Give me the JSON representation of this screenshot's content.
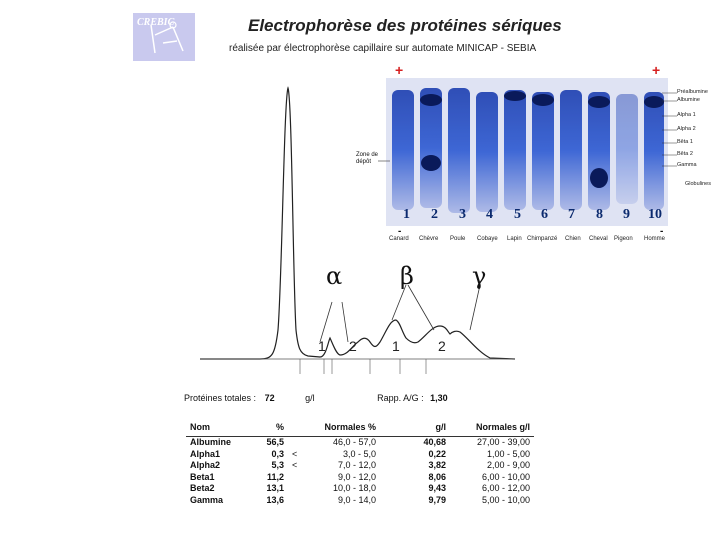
{
  "header": {
    "logo_text": "CREBIC",
    "title": "Electrophorèse des protéines sériques",
    "subtitle": "réalisée par électrophorèse capillaire sur automate MINICAP - SEBIA"
  },
  "gel": {
    "anode_left": "+",
    "anode_right": "+",
    "cathode_left": "-",
    "cathode_right": "-",
    "deposit_zone_line1": "Zone de",
    "deposit_zone_line2": "dépôt",
    "lane_numbers": [
      "1",
      "2",
      "3",
      "4",
      "5",
      "6",
      "7",
      "8",
      "9",
      "10"
    ],
    "lane_names": [
      "Canard",
      "Chèvre",
      "Poule",
      "Cobaye",
      "Lapin",
      "Chimpanzé",
      "Chien",
      "Cheval",
      "Pigeon",
      "Homme"
    ],
    "right_labels": [
      "Préalbumine",
      "Albumine",
      "Alpha 1",
      "Alpha 2",
      "Bêta 1",
      "Bêta 2",
      "Gamma",
      "Globulines"
    ]
  },
  "curve": {
    "greek": [
      "α",
      "β",
      "γ"
    ],
    "peak_labels": [
      "1",
      "2",
      "1",
      "2"
    ]
  },
  "summary": {
    "total_label": "Protéines totales :",
    "total_value": "72",
    "total_unit": "g/l",
    "ratio_label": "Rapp. A/G :",
    "ratio_value": "1,30"
  },
  "table": {
    "headers": [
      "Nom",
      "%",
      "Normales %",
      "g/l",
      "Normales g/l"
    ],
    "rows": [
      {
        "name": "Albumine",
        "pct": "56,5",
        "flag": "",
        "norm_pct": "46,0 - 57,0",
        "gl": "40,68",
        "norm_gl": "27,00 - 39,00"
      },
      {
        "name": "Alpha1",
        "pct": "0,3",
        "flag": "<",
        "norm_pct": "3,0 - 5,0",
        "gl": "0,22",
        "norm_gl": "1,00 - 5,00"
      },
      {
        "name": "Alpha2",
        "pct": "5,3",
        "flag": "<",
        "norm_pct": "7,0 - 12,0",
        "gl": "3,82",
        "norm_gl": "2,00 - 9,00"
      },
      {
        "name": "Beta1",
        "pct": "11,2",
        "flag": "",
        "norm_pct": "9,0 - 12,0",
        "gl": "8,06",
        "norm_gl": "6,00 - 10,00"
      },
      {
        "name": "Beta2",
        "pct": "13,1",
        "flag": "",
        "norm_pct": "10,0 - 18,0",
        "gl": "9,43",
        "norm_gl": "6,00 - 12,00"
      },
      {
        "name": "Gamma",
        "pct": "13,6",
        "flag": "",
        "norm_pct": "9,0 - 14,0",
        "gl": "9,79",
        "norm_gl": "5,00 - 10,00"
      }
    ]
  }
}
